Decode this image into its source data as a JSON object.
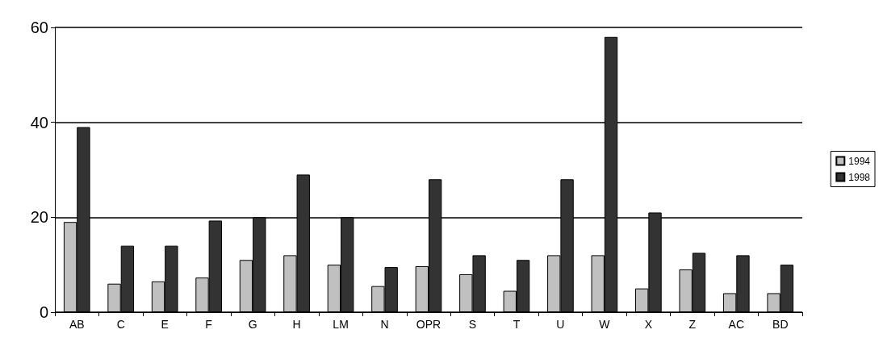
{
  "chart_data": {
    "type": "bar",
    "categories": [
      "AB",
      "C",
      "E",
      "F",
      "G",
      "H",
      "LM",
      "N",
      "OPR",
      "S",
      "T",
      "U",
      "W",
      "X",
      "Z",
      "AC",
      "BD"
    ],
    "series": [
      {
        "name": "1994",
        "color": "#c0c0c0",
        "values": [
          19,
          6,
          6.5,
          7.3,
          11,
          12,
          10,
          5.5,
          9.7,
          8,
          4.5,
          12,
          12,
          5,
          9,
          4,
          4
        ]
      },
      {
        "name": "1998",
        "color": "#333333",
        "values": [
          39,
          14,
          14,
          19.3,
          20,
          29,
          20,
          9.5,
          28,
          12,
          11,
          28,
          58,
          21,
          12.5,
          12,
          10
        ]
      }
    ],
    "ylim": [
      0,
      60
    ],
    "yticks": [
      0,
      20,
      40,
      60
    ],
    "grid": "y",
    "legend": "right"
  }
}
